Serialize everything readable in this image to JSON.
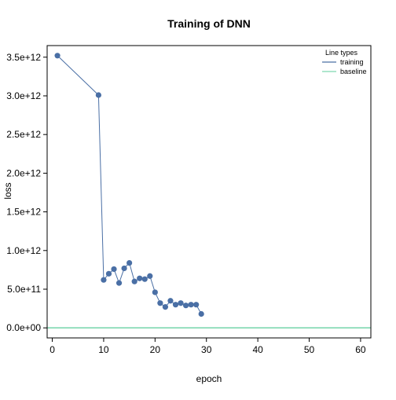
{
  "chart_data": {
    "type": "line",
    "title": "Training of DNN",
    "xlabel": "epoch",
    "ylabel": "loss",
    "xlim": [
      -1,
      62
    ],
    "ylim": [
      -130000000000.0,
      3650000000000.0
    ],
    "x_ticks": [
      0,
      10,
      20,
      30,
      40,
      50,
      60
    ],
    "x_tick_labels": [
      "0",
      "10",
      "20",
      "30",
      "40",
      "50",
      "60"
    ],
    "y_ticks": [
      0,
      500000000000.0,
      1000000000000.0,
      1500000000000.0,
      2000000000000.0,
      2500000000000.0,
      3000000000000.0,
      3500000000000.0
    ],
    "y_tick_labels": [
      "0.0e+00",
      "5.0e+11",
      "1.0e+12",
      "1.5e+12",
      "2.0e+12",
      "2.5e+12",
      "3.0e+12",
      "3.5e+12"
    ],
    "grid": false,
    "legend": {
      "title": "Line types",
      "position": "top-right",
      "entries": [
        {
          "label": "training",
          "color": "#4a6fa5"
        },
        {
          "label": "baseline",
          "color": "#7fd8b0"
        }
      ]
    },
    "series": [
      {
        "name": "training",
        "color": "#4a6fa5",
        "points": [
          {
            "x": 1,
            "y": 3520000000000.0
          },
          {
            "x": 9,
            "y": 3010000000000.0
          },
          {
            "x": 10,
            "y": 620000000000.0
          },
          {
            "x": 11,
            "y": 700000000000.0
          },
          {
            "x": 12,
            "y": 760000000000.0
          },
          {
            "x": 13,
            "y": 580000000000.0
          },
          {
            "x": 14,
            "y": 770000000000.0
          },
          {
            "x": 15,
            "y": 840000000000.0
          },
          {
            "x": 16,
            "y": 600000000000.0
          },
          {
            "x": 17,
            "y": 640000000000.0
          },
          {
            "x": 18,
            "y": 630000000000.0
          },
          {
            "x": 19,
            "y": 670000000000.0
          },
          {
            "x": 20,
            "y": 460000000000.0
          },
          {
            "x": 21,
            "y": 320000000000.0
          },
          {
            "x": 22,
            "y": 270000000000.0
          },
          {
            "x": 23,
            "y": 350000000000.0
          },
          {
            "x": 24,
            "y": 300000000000.0
          },
          {
            "x": 25,
            "y": 320000000000.0
          },
          {
            "x": 26,
            "y": 290000000000.0
          },
          {
            "x": 27,
            "y": 300000000000.0
          },
          {
            "x": 28,
            "y": 300000000000.0
          },
          {
            "x": 29,
            "y": 180000000000.0
          }
        ]
      },
      {
        "name": "baseline",
        "color": "#7fd8b0",
        "y": 0
      }
    ]
  }
}
